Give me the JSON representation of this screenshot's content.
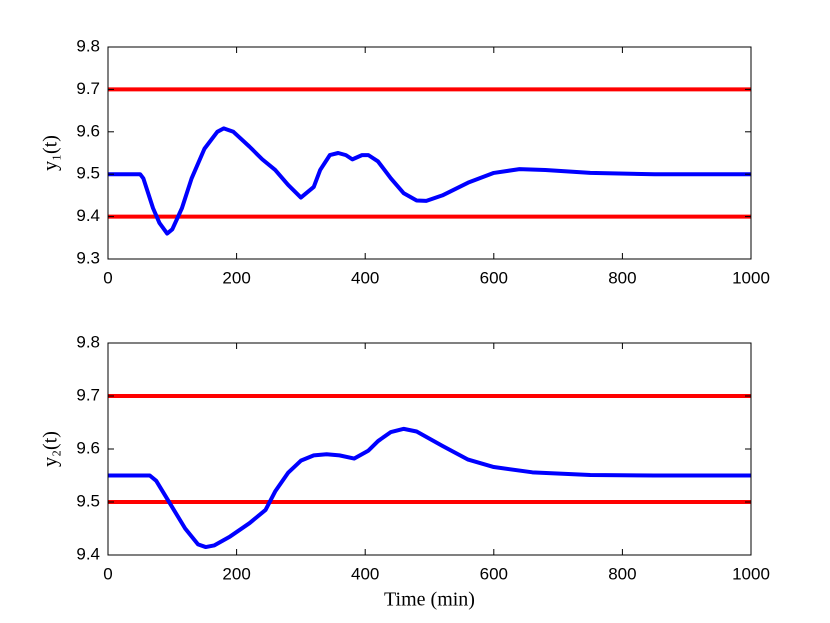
{
  "chart_data": [
    {
      "type": "line",
      "ylabel": "y₁(t)",
      "xlim": [
        0,
        1000
      ],
      "xticks": [
        0,
        200,
        400,
        600,
        800,
        1000
      ],
      "ylim": [
        9.3,
        9.8
      ],
      "yticks": [
        9.3,
        9.4,
        9.5,
        9.6,
        9.7,
        9.8
      ],
      "series": [
        {
          "color": "#ff0000",
          "x": [
            0,
            1000
          ],
          "values": [
            9.7,
            9.7
          ]
        },
        {
          "color": "#ff0000",
          "x": [
            0,
            1000
          ],
          "values": [
            9.4,
            9.4
          ]
        },
        {
          "color": "#0000ff",
          "x": [
            0,
            50,
            55,
            70,
            80,
            92,
            100,
            115,
            130,
            150,
            170,
            180,
            195,
            220,
            240,
            260,
            280,
            300,
            320,
            330,
            345,
            358,
            370,
            380,
            395,
            405,
            420,
            440,
            460,
            480,
            495,
            520,
            560,
            600,
            640,
            680,
            750,
            850,
            1000
          ],
          "values": [
            9.5,
            9.5,
            9.49,
            9.42,
            9.385,
            9.36,
            9.37,
            9.42,
            9.49,
            9.56,
            9.6,
            9.608,
            9.6,
            9.565,
            9.535,
            9.51,
            9.475,
            9.445,
            9.47,
            9.51,
            9.545,
            9.55,
            9.545,
            9.535,
            9.545,
            9.545,
            9.53,
            9.49,
            9.455,
            9.438,
            9.437,
            9.45,
            9.48,
            9.503,
            9.512,
            9.51,
            9.503,
            9.5,
            9.5
          ]
        }
      ]
    },
    {
      "type": "line",
      "ylabel": "y₂(t)",
      "xlabel": "Time (min)",
      "xlim": [
        0,
        1000
      ],
      "xticks": [
        0,
        200,
        400,
        600,
        800,
        1000
      ],
      "ylim": [
        9.4,
        9.8
      ],
      "yticks": [
        9.4,
        9.5,
        9.6,
        9.7,
        9.8
      ],
      "series": [
        {
          "color": "#ff0000",
          "x": [
            0,
            1000
          ],
          "values": [
            9.7,
            9.7
          ]
        },
        {
          "color": "#ff0000",
          "x": [
            0,
            1000
          ],
          "values": [
            9.5,
            9.5
          ]
        },
        {
          "color": "#0000ff",
          "x": [
            0,
            65,
            75,
            90,
            100,
            120,
            140,
            152,
            165,
            190,
            220,
            245,
            260,
            280,
            300,
            320,
            340,
            360,
            383,
            405,
            420,
            440,
            460,
            480,
            520,
            560,
            600,
            660,
            750,
            850,
            1000
          ],
          "values": [
            9.55,
            9.55,
            9.54,
            9.51,
            9.49,
            9.45,
            9.42,
            9.415,
            9.418,
            9.435,
            9.46,
            9.485,
            9.52,
            9.555,
            9.578,
            9.588,
            9.59,
            9.588,
            9.582,
            9.597,
            9.615,
            9.632,
            9.638,
            9.633,
            9.606,
            9.58,
            9.566,
            9.556,
            9.551,
            9.55,
            9.55
          ]
        }
      ]
    }
  ]
}
